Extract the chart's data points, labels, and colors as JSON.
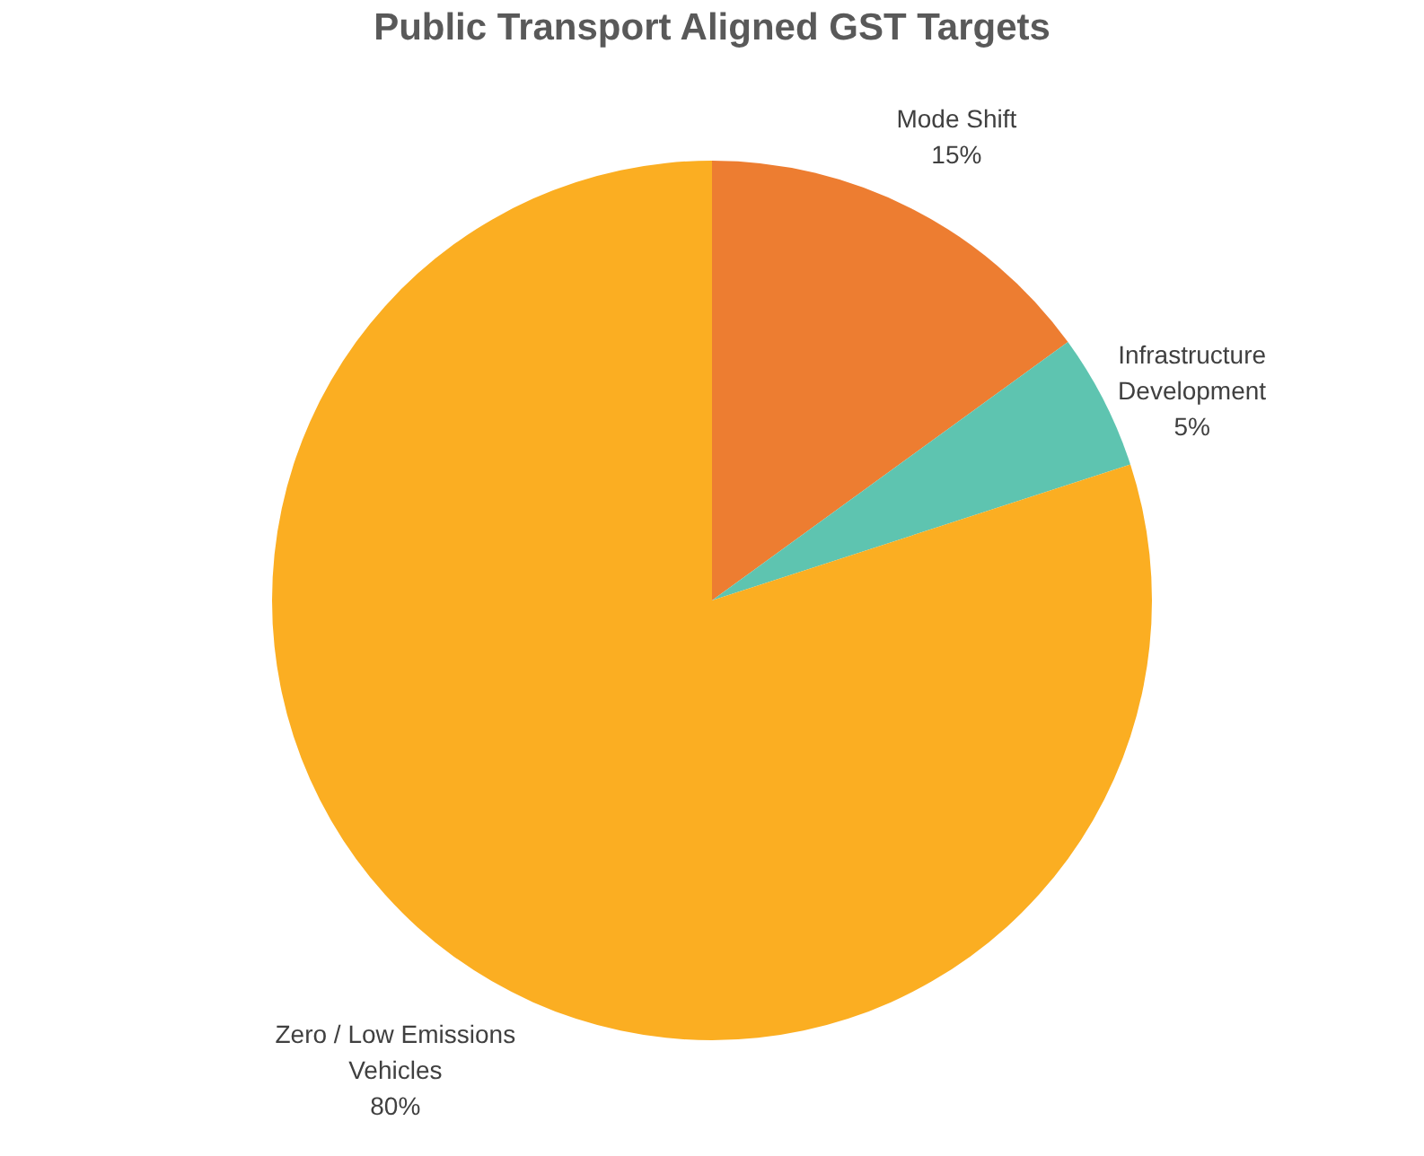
{
  "chart_data": {
    "type": "pie",
    "title": "Public Transport Aligned GST Targets",
    "categories": [
      "Mode Shift",
      "Infrastructure Development",
      "Zero / Low Emissions Vehicles"
    ],
    "values": [
      15,
      5,
      80
    ],
    "colors": [
      "#ed7d31",
      "#5ec4b0",
      "#fbae22"
    ],
    "value_labels": [
      "15%",
      "5%",
      "80%"
    ]
  }
}
